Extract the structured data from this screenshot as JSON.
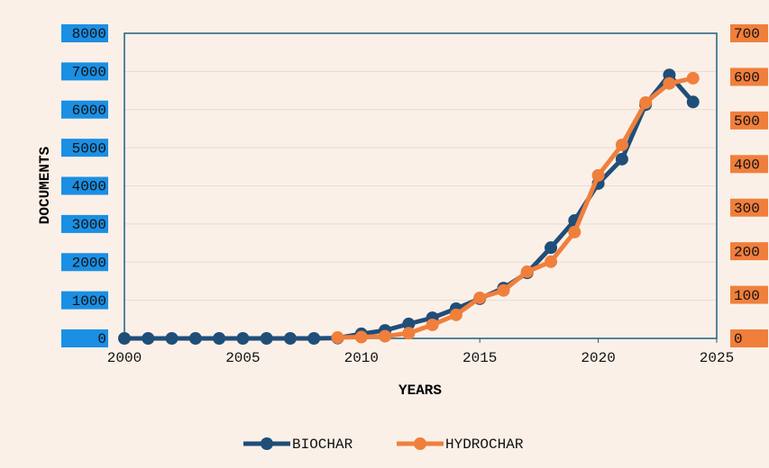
{
  "chart_data": {
    "type": "line",
    "x_label": "YEARS",
    "y_label": "DOCUMENTS",
    "x": [
      2000,
      2001,
      2002,
      2003,
      2004,
      2005,
      2006,
      2007,
      2008,
      2009,
      2010,
      2011,
      2012,
      2013,
      2014,
      2015,
      2016,
      2017,
      2018,
      2019,
      2020,
      2021,
      2022,
      2023,
      2024
    ],
    "series": [
      {
        "name": "BIOCHAR",
        "color": "#1f4e79",
        "axis": "y",
        "values": [
          0,
          0,
          0,
          0,
          0,
          0,
          0,
          0,
          0,
          10,
          120,
          210,
          380,
          540,
          780,
          1040,
          1320,
          1720,
          2380,
          3090,
          4060,
          4700,
          6130,
          6910,
          6200
        ]
      },
      {
        "name": "HYDROCHAR",
        "color": "#f07f3c",
        "axis": "y2",
        "values": [
          null,
          null,
          null,
          null,
          null,
          null,
          null,
          null,
          null,
          2,
          3,
          5,
          12,
          31,
          54,
          93,
          110,
          153,
          176,
          244,
          374,
          444,
          541,
          585,
          597
        ]
      }
    ],
    "xlim": [
      2000,
      2025
    ],
    "xticks": [
      2000,
      2005,
      2010,
      2015,
      2020,
      2025
    ],
    "ylim": [
      0,
      8000
    ],
    "yticks": [
      0,
      1000,
      2000,
      3000,
      4000,
      5000,
      6000,
      7000,
      8000
    ],
    "y2lim": [
      0,
      700
    ],
    "y2ticks": [
      0,
      100,
      200,
      300,
      400,
      500,
      600,
      700
    ],
    "grid": true,
    "legend": "bottom"
  }
}
